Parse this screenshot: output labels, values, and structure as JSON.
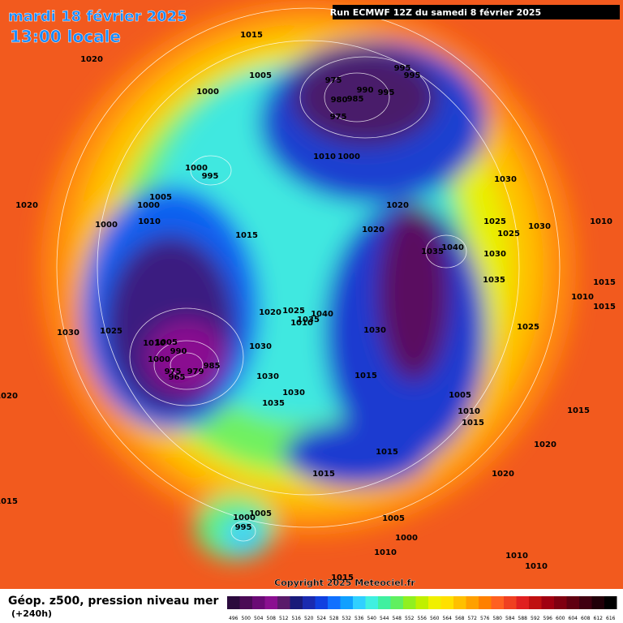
{
  "header": {
    "date": "mardi 18 février 2025",
    "time": "13:00 locale",
    "run": "Run ECMWF 12Z du samedi 8 février 2025"
  },
  "map": {
    "pressure_labels": [
      1015,
      1020,
      1005,
      1000,
      975,
      995,
      995,
      990,
      995,
      980,
      985,
      975,
      1010,
      1000,
      1000,
      995,
      1030,
      1005,
      1020,
      1000,
      1020,
      1010,
      1000,
      1025,
      1030,
      1010,
      1020,
      1025,
      1015,
      1040,
      1035,
      1030,
      1035,
      1015,
      1010,
      1015,
      1020,
      1025,
      1040,
      1035,
      1010,
      1025,
      1030,
      1025,
      1030,
      1005,
      1010,
      990,
      1030,
      1000,
      985,
      975,
      979,
      965,
      1015,
      1030,
      1030,
      1005,
      1020,
      1035,
      1010,
      1015,
      1015,
      1020,
      1015,
      1020,
      1015,
      1015,
      1005,
      1005,
      1000,
      995,
      1000,
      1010,
      1010,
      1010,
      1015
    ],
    "copyright": "Copyright 2025 Meteociel.fr"
  },
  "legend": {
    "title": "Géop. z500, pression niveau mer",
    "lead": "(+240h)",
    "levels": [
      496,
      500,
      504,
      508,
      512,
      516,
      520,
      524,
      528,
      532,
      536,
      540,
      544,
      548,
      552,
      556,
      560,
      564,
      568,
      572,
      576,
      580,
      584,
      588,
      592,
      596,
      600,
      604,
      608,
      612,
      616
    ],
    "colors": [
      "#2b0a3d",
      "#4a0a55",
      "#6a0a75",
      "#8a1090",
      "#5a1a6a",
      "#1a1a7a",
      "#1a2ab0",
      "#1040e0",
      "#1070ff",
      "#10a0ff",
      "#30d0ff",
      "#40f0e0",
      "#40f0a0",
      "#60f060",
      "#90f020",
      "#c0f000",
      "#f0f000",
      "#ffe000",
      "#ffc000",
      "#ffa000",
      "#ff8000",
      "#ff6020",
      "#f04020",
      "#e02020",
      "#c01010",
      "#a00010",
      "#800010",
      "#600010",
      "#400010",
      "#200008",
      "#000000"
    ]
  }
}
